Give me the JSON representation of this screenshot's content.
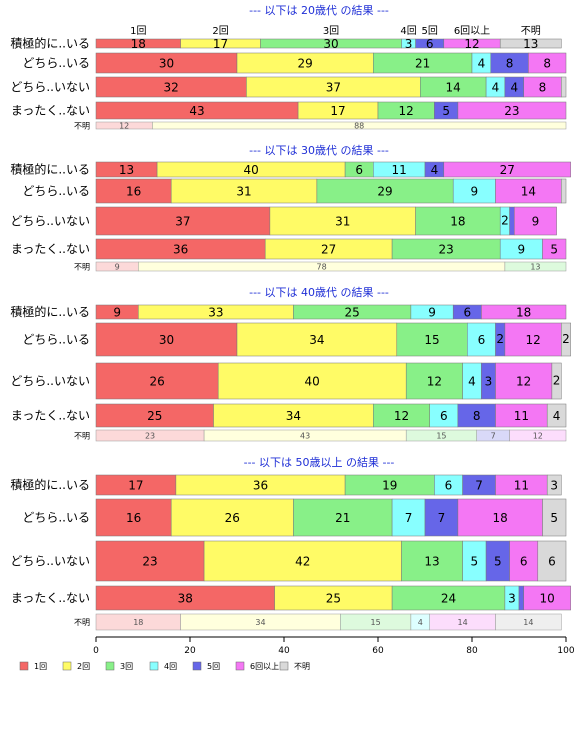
{
  "chart_data": {
    "type": "bar",
    "orientation": "horizontal",
    "stacked": true,
    "xlim": [
      0,
      100
    ],
    "xticks": [
      0,
      20,
      40,
      60,
      80,
      100
    ],
    "categories": [
      "1回",
      "2回",
      "3回",
      "4回",
      "5回",
      "6回以上",
      "不明"
    ],
    "colors": [
      "#f46766",
      "#fffb66",
      "#88f088",
      "#88ffff",
      "#6666e8",
      "#f477f4",
      "#d9d9d9"
    ],
    "top_labels": [
      "1回",
      "2回",
      "3回",
      "4回",
      "5回",
      "6回以上",
      "不明"
    ],
    "groups": [
      {
        "title": "--- 以下は 20歳代 の結果 ---",
        "rows": [
          {
            "label": "積極的に..いる",
            "values": [
              18,
              17,
              30,
              3,
              6,
              12,
              13
            ]
          },
          {
            "label": "どちら..いる",
            "values": [
              30,
              29,
              21,
              4,
              8,
              8,
              0
            ]
          },
          {
            "label": "どちら..いない",
            "values": [
              32,
              37,
              14,
              4,
              4,
              8,
              1
            ]
          },
          {
            "label": "まったく..ない",
            "values": [
              43,
              17,
              12,
              0,
              5,
              23,
              0
            ]
          }
        ],
        "unknown_row": {
          "label": "不明",
          "values": [
            12,
            88,
            0,
            0,
            0,
            0,
            0
          ]
        }
      },
      {
        "title": "--- 以下は 30歳代 の結果 ---",
        "rows": [
          {
            "label": "積極的に..いる",
            "values": [
              13,
              40,
              6,
              11,
              4,
              27,
              0
            ]
          },
          {
            "label": "どちら..いる",
            "values": [
              16,
              31,
              29,
              9,
              0,
              14,
              1
            ]
          },
          {
            "label": "どちら..いない",
            "values": [
              37,
              31,
              18,
              2,
              1,
              9,
              0
            ]
          },
          {
            "label": "まったく..ない",
            "values": [
              36,
              27,
              23,
              9,
              0,
              5,
              0
            ]
          }
        ],
        "unknown_row": {
          "label": "不明",
          "values": [
            9,
            78,
            13,
            0,
            0,
            0,
            0
          ]
        }
      },
      {
        "title": "--- 以下は 40歳代 の結果 ---",
        "rows": [
          {
            "label": "積極的に..いる",
            "values": [
              9,
              33,
              25,
              9,
              6,
              18,
              0
            ]
          },
          {
            "label": "どちら..いる",
            "values": [
              30,
              34,
              15,
              6,
              2,
              12,
              2
            ]
          },
          {
            "label": "どちら..いない",
            "values": [
              26,
              40,
              12,
              4,
              3,
              12,
              2
            ]
          },
          {
            "label": "まったく..ない",
            "values": [
              25,
              34,
              12,
              6,
              8,
              11,
              4
            ]
          }
        ],
        "unknown_row": {
          "label": "不明",
          "values": [
            23,
            43,
            15,
            0,
            7,
            12,
            0
          ]
        }
      },
      {
        "title": "--- 以下は 50歳以上 の結果 ---",
        "rows": [
          {
            "label": "積極的に..いる",
            "values": [
              17,
              36,
              19,
              6,
              7,
              11,
              3
            ]
          },
          {
            "label": "どちら..いる",
            "values": [
              16,
              26,
              21,
              7,
              7,
              18,
              5
            ]
          },
          {
            "label": "どちら..いない",
            "values": [
              23,
              42,
              13,
              5,
              5,
              6,
              6
            ]
          },
          {
            "label": "まったく..ない",
            "values": [
              38,
              25,
              24,
              3,
              1,
              10,
              0
            ]
          }
        ],
        "unknown_row": {
          "label": "不明",
          "values": [
            18,
            34,
            15,
            4,
            0,
            14,
            14
          ]
        }
      }
    ],
    "legend_position": "bottom-left",
    "grid": false
  }
}
